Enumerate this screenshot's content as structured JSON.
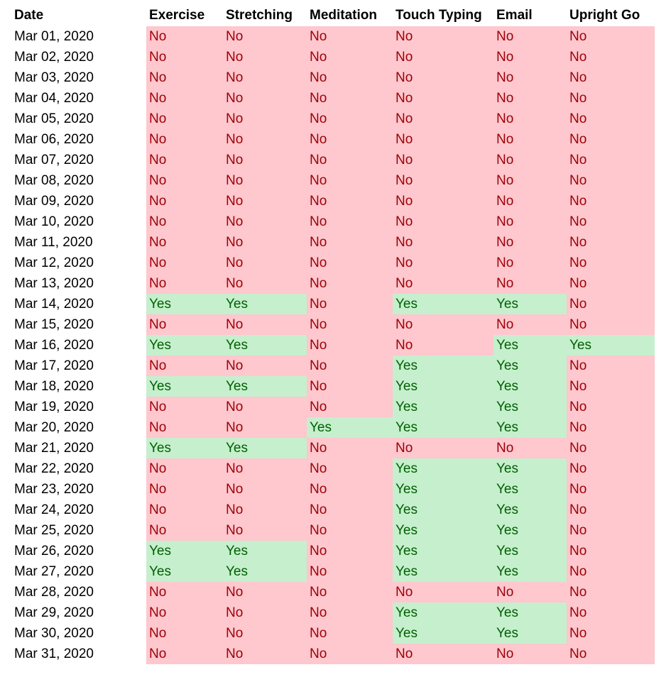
{
  "headers": [
    "Date",
    "Exercise",
    "Stretching",
    "Meditation",
    "Touch Typing",
    "Email",
    "Upright Go"
  ],
  "rows": [
    {
      "date": "Mar 01, 2020",
      "values": [
        "No",
        "No",
        "No",
        "No",
        "No",
        "No"
      ]
    },
    {
      "date": "Mar 02, 2020",
      "values": [
        "No",
        "No",
        "No",
        "No",
        "No",
        "No"
      ]
    },
    {
      "date": "Mar 03, 2020",
      "values": [
        "No",
        "No",
        "No",
        "No",
        "No",
        "No"
      ]
    },
    {
      "date": "Mar 04, 2020",
      "values": [
        "No",
        "No",
        "No",
        "No",
        "No",
        "No"
      ]
    },
    {
      "date": "Mar 05, 2020",
      "values": [
        "No",
        "No",
        "No",
        "No",
        "No",
        "No"
      ]
    },
    {
      "date": "Mar 06, 2020",
      "values": [
        "No",
        "No",
        "No",
        "No",
        "No",
        "No"
      ]
    },
    {
      "date": "Mar 07, 2020",
      "values": [
        "No",
        "No",
        "No",
        "No",
        "No",
        "No"
      ]
    },
    {
      "date": "Mar 08, 2020",
      "values": [
        "No",
        "No",
        "No",
        "No",
        "No",
        "No"
      ]
    },
    {
      "date": "Mar 09, 2020",
      "values": [
        "No",
        "No",
        "No",
        "No",
        "No",
        "No"
      ]
    },
    {
      "date": "Mar 10, 2020",
      "values": [
        "No",
        "No",
        "No",
        "No",
        "No",
        "No"
      ]
    },
    {
      "date": "Mar 11, 2020",
      "values": [
        "No",
        "No",
        "No",
        "No",
        "No",
        "No"
      ]
    },
    {
      "date": "Mar 12, 2020",
      "values": [
        "No",
        "No",
        "No",
        "No",
        "No",
        "No"
      ]
    },
    {
      "date": "Mar 13, 2020",
      "values": [
        "No",
        "No",
        "No",
        "No",
        "No",
        "No"
      ]
    },
    {
      "date": "Mar 14, 2020",
      "values": [
        "Yes",
        "Yes",
        "No",
        "Yes",
        "Yes",
        "No"
      ]
    },
    {
      "date": "Mar 15, 2020",
      "values": [
        "No",
        "No",
        "No",
        "No",
        "No",
        "No"
      ]
    },
    {
      "date": "Mar 16, 2020",
      "values": [
        "Yes",
        "Yes",
        "No",
        "No",
        "Yes",
        "Yes"
      ]
    },
    {
      "date": "Mar 17, 2020",
      "values": [
        "No",
        "No",
        "No",
        "Yes",
        "Yes",
        "No"
      ]
    },
    {
      "date": "Mar 18, 2020",
      "values": [
        "Yes",
        "Yes",
        "No",
        "Yes",
        "Yes",
        "No"
      ]
    },
    {
      "date": "Mar 19, 2020",
      "values": [
        "No",
        "No",
        "No",
        "Yes",
        "Yes",
        "No"
      ]
    },
    {
      "date": "Mar 20, 2020",
      "values": [
        "No",
        "No",
        "Yes",
        "Yes",
        "Yes",
        "No"
      ]
    },
    {
      "date": "Mar 21, 2020",
      "values": [
        "Yes",
        "Yes",
        "No",
        "No",
        "No",
        "No"
      ]
    },
    {
      "date": "Mar 22, 2020",
      "values": [
        "No",
        "No",
        "No",
        "Yes",
        "Yes",
        "No"
      ]
    },
    {
      "date": "Mar 23, 2020",
      "values": [
        "No",
        "No",
        "No",
        "Yes",
        "Yes",
        "No"
      ]
    },
    {
      "date": "Mar 24, 2020",
      "values": [
        "No",
        "No",
        "No",
        "Yes",
        "Yes",
        "No"
      ]
    },
    {
      "date": "Mar 25, 2020",
      "values": [
        "No",
        "No",
        "No",
        "Yes",
        "Yes",
        "No"
      ]
    },
    {
      "date": "Mar 26, 2020",
      "values": [
        "Yes",
        "Yes",
        "No",
        "Yes",
        "Yes",
        "No"
      ]
    },
    {
      "date": "Mar 27, 2020",
      "values": [
        "Yes",
        "Yes",
        "No",
        "Yes",
        "Yes",
        "No"
      ]
    },
    {
      "date": "Mar 28, 2020",
      "values": [
        "No",
        "No",
        "No",
        "No",
        "No",
        "No"
      ]
    },
    {
      "date": "Mar 29, 2020",
      "values": [
        "No",
        "No",
        "No",
        "Yes",
        "Yes",
        "No"
      ]
    },
    {
      "date": "Mar 30, 2020",
      "values": [
        "No",
        "No",
        "No",
        "Yes",
        "Yes",
        "No"
      ]
    },
    {
      "date": "Mar 31, 2020",
      "values": [
        "No",
        "No",
        "No",
        "No",
        "No",
        "No"
      ]
    }
  ],
  "colors": {
    "no_fill": "#ffc7ce",
    "no_text": "#9c0006",
    "yes_fill": "#c6efce",
    "yes_text": "#006100"
  }
}
